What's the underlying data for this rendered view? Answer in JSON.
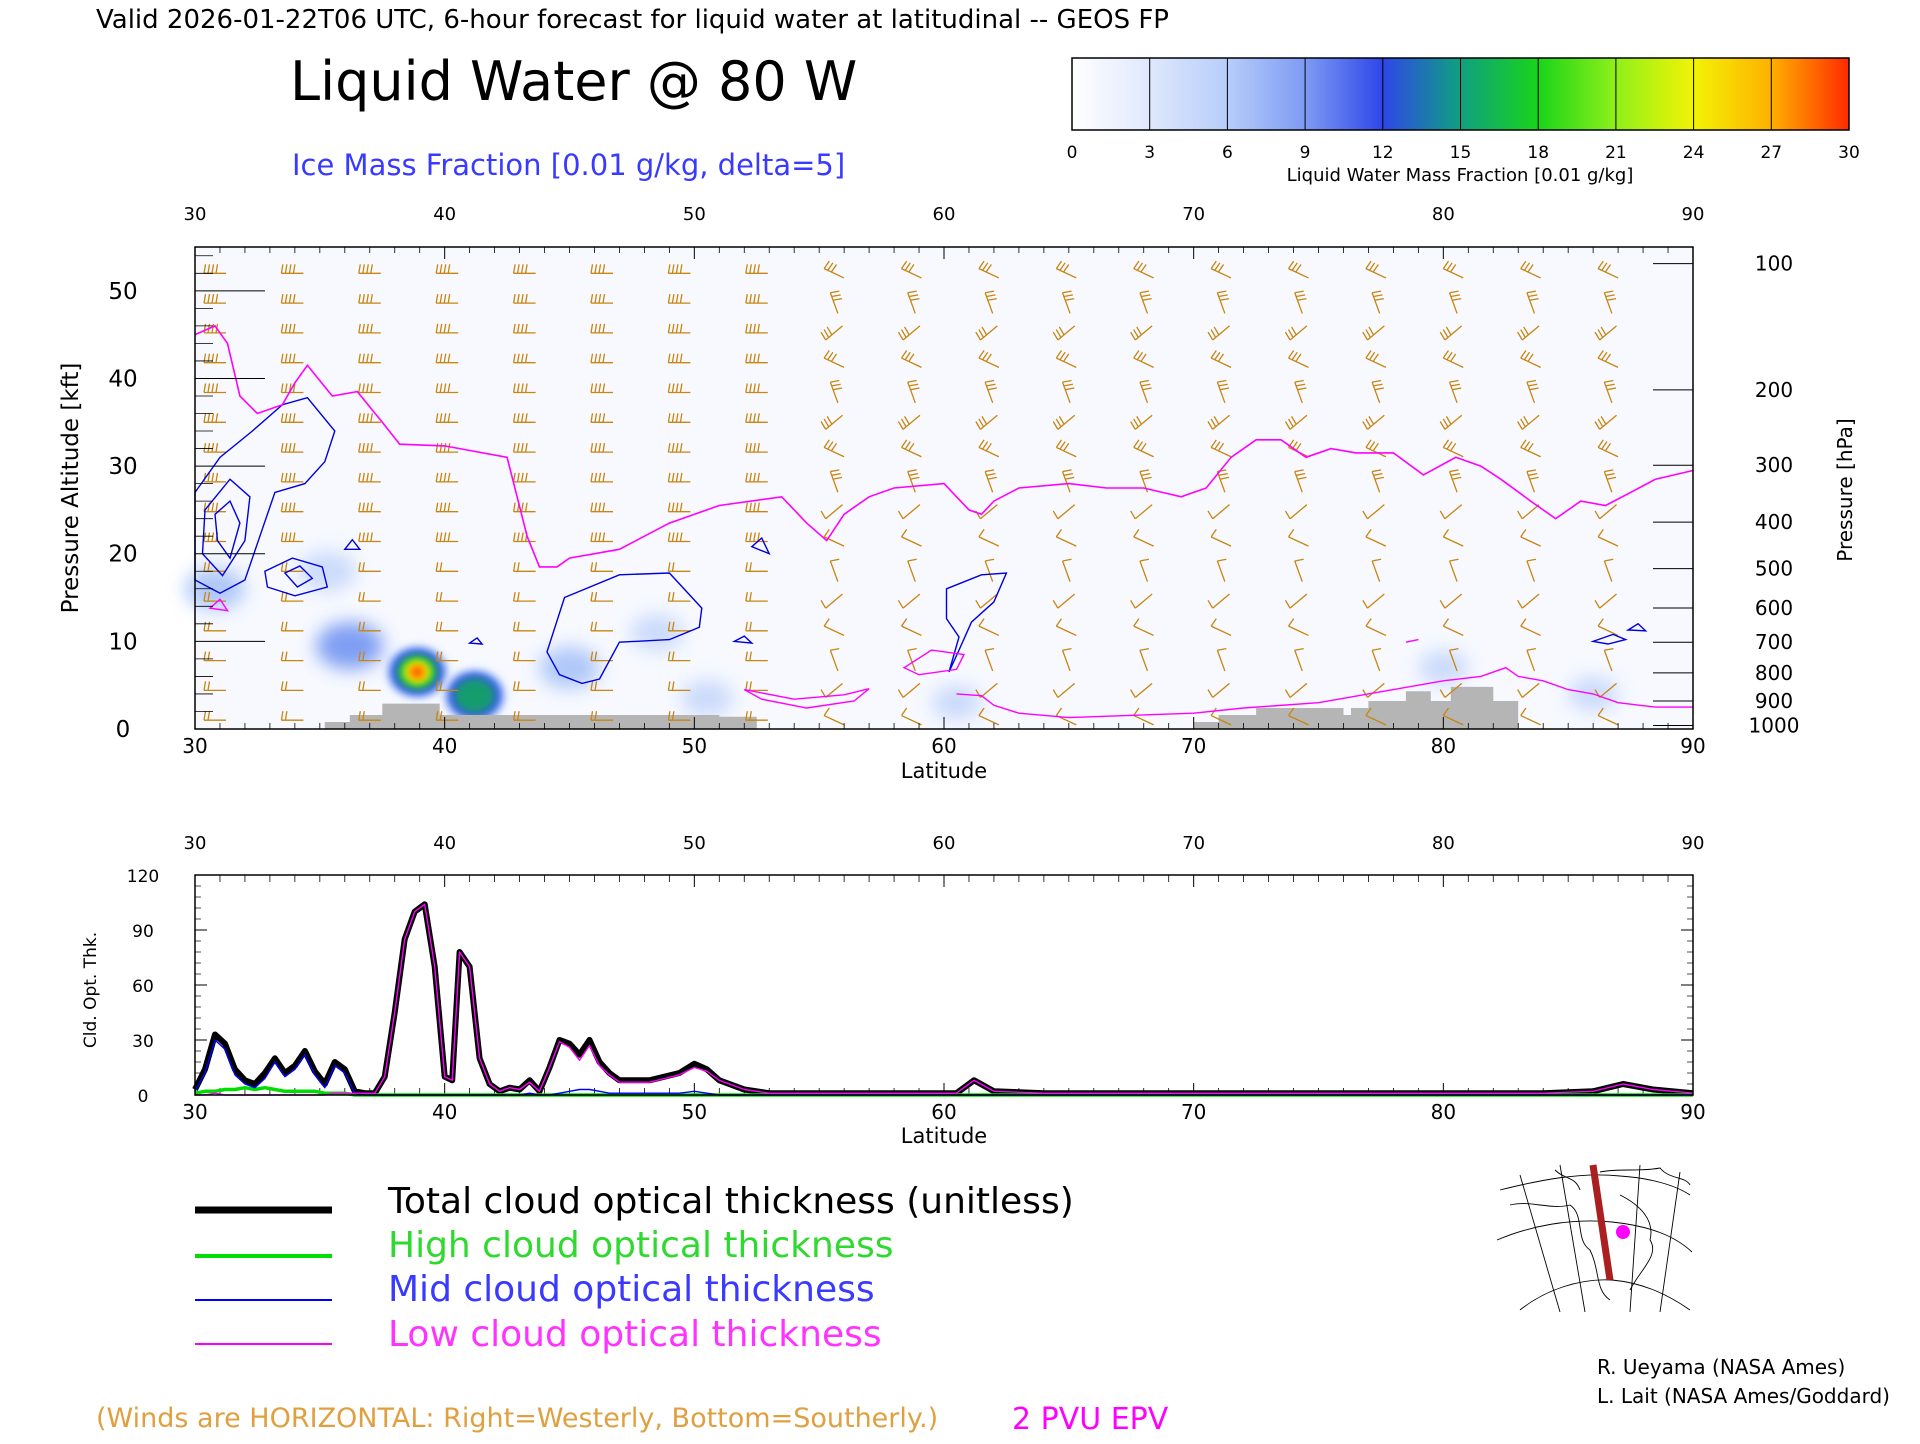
{
  "header": {
    "valid_line": "Valid 2026-01-22T06 UTC, 6-hour forecast for liquid water at latitudinal -- GEOS FP",
    "main_title": "Liquid Water @ 80 W",
    "ice_caption": "Ice Mass Fraction [0.01 g/kg, delta=5]"
  },
  "colorbar": {
    "ticks": [
      "0",
      "3",
      "6",
      "9",
      "12",
      "15",
      "18",
      "21",
      "24",
      "27",
      "30"
    ],
    "label": "Liquid Water Mass Fraction [0.01 g/kg]",
    "colors": [
      "#f4f6ff",
      "#c4d6fb",
      "#a3bff8",
      "#6b8ff1",
      "#2f4ee8",
      "#15a06a",
      "#2bd62b",
      "#9fef1f",
      "#f2f205",
      "#ffb500",
      "#ff3a00"
    ]
  },
  "colors": {
    "wind": "#c8850f",
    "epv": "#ff00ff",
    "ice": "#0000dd",
    "terrain": "#b5b5b5",
    "total_line": "#000000",
    "high_line": "#00dd00",
    "mid_line": "#0000ff",
    "low_line": "#ff00ff"
  },
  "chart_data": [
    {
      "type": "heatmap",
      "xlabel": "Latitude",
      "ylabel": "Pressure Altitude [kft]",
      "y2label": "Pressure [hPa]",
      "xlim": [
        30,
        90
      ],
      "ylim": [
        0,
        55
      ],
      "x_ticks": [
        "30",
        "40",
        "50",
        "60",
        "70",
        "80",
        "90"
      ],
      "y_ticks": [
        "0",
        "10",
        "20",
        "30",
        "40",
        "50"
      ],
      "pressure_ticks": [
        {
          "label": "100",
          "kft": 53.1
        },
        {
          "label": "200",
          "kft": 38.7
        },
        {
          "label": "300",
          "kft": 30.1
        },
        {
          "label": "400",
          "kft": 23.6
        },
        {
          "label": "500",
          "kft": 18.3
        },
        {
          "label": "600",
          "kft": 13.8
        },
        {
          "label": "700",
          "kft": 9.9
        },
        {
          "label": "800",
          "kft": 6.4
        },
        {
          "label": "900",
          "kft": 3.2
        },
        {
          "label": "1000",
          "kft": 0.4
        }
      ],
      "liquid_water_blobs": [
        {
          "lat": 38.9,
          "kft": 6.5,
          "peak": 30
        },
        {
          "lat": 41.2,
          "kft": 3.8,
          "peak": 16
        },
        {
          "lat": 30.8,
          "kft": 16,
          "peak": 5
        },
        {
          "lat": 35.3,
          "kft": 18,
          "peak": 4
        },
        {
          "lat": 36.2,
          "kft": 9.5,
          "peak": 8
        },
        {
          "lat": 45,
          "kft": 7,
          "peak": 5
        },
        {
          "lat": 48.5,
          "kft": 11,
          "peak": 2
        },
        {
          "lat": 50.5,
          "kft": 3.5,
          "peak": 2
        },
        {
          "lat": 60.5,
          "kft": 3,
          "peak": 1
        },
        {
          "lat": 80,
          "kft": 7,
          "peak": 1
        },
        {
          "lat": 86,
          "kft": 4,
          "peak": 1
        }
      ],
      "epv_2pvu_line": [
        [
          30,
          45
        ],
        [
          30.8,
          46
        ],
        [
          31.3,
          44
        ],
        [
          31.8,
          38
        ],
        [
          32.5,
          36
        ],
        [
          33.5,
          37
        ],
        [
          34,
          39.5
        ],
        [
          34.5,
          41.5
        ],
        [
          35.5,
          38
        ],
        [
          36.5,
          38.5
        ],
        [
          37.5,
          35
        ],
        [
          38.2,
          32.5
        ],
        [
          40,
          32.3
        ],
        [
          42.5,
          31
        ],
        [
          43.3,
          22
        ],
        [
          43.8,
          18.5
        ],
        [
          44.5,
          18.5
        ],
        [
          45,
          19.5
        ],
        [
          47,
          20.5
        ],
        [
          49,
          23.5
        ],
        [
          51,
          25.5
        ],
        [
          53.5,
          26.5
        ],
        [
          54.5,
          23.5
        ],
        [
          55.3,
          21.5
        ],
        [
          56,
          24.5
        ],
        [
          57,
          26.5
        ],
        [
          58,
          27.5
        ],
        [
          60,
          28
        ],
        [
          61,
          25
        ],
        [
          61.5,
          24.5
        ],
        [
          62,
          26
        ],
        [
          63,
          27.5
        ],
        [
          65,
          28
        ],
        [
          66.5,
          27.5
        ],
        [
          68,
          27.5
        ],
        [
          69.5,
          26.5
        ],
        [
          70.5,
          27.5
        ],
        [
          71.5,
          31
        ],
        [
          72.5,
          33
        ],
        [
          73.5,
          33
        ],
        [
          74.5,
          31
        ],
        [
          75.5,
          32
        ],
        [
          76.5,
          31.5
        ],
        [
          78,
          31.5
        ],
        [
          79.2,
          29
        ],
        [
          80.5,
          31
        ],
        [
          81.5,
          30
        ],
        [
          82.3,
          28.5
        ],
        [
          83.5,
          26
        ],
        [
          84.5,
          24
        ],
        [
          85.5,
          26
        ],
        [
          86.5,
          25.5
        ],
        [
          87.5,
          27
        ],
        [
          88.5,
          28.5
        ],
        [
          90,
          29.5
        ]
      ],
      "epv_low_line": [
        [
          60.5,
          4
        ],
        [
          61.5,
          3.8
        ],
        [
          62,
          2.7
        ],
        [
          63,
          1.8
        ],
        [
          65,
          1.3
        ],
        [
          70,
          1.8
        ],
        [
          72,
          2.4
        ],
        [
          75,
          3
        ],
        [
          78,
          4.5
        ],
        [
          80,
          5.5
        ],
        [
          81.5,
          6
        ],
        [
          82.5,
          7
        ],
        [
          83,
          6
        ],
        [
          84,
          5.5
        ],
        [
          85,
          4.5
        ],
        [
          86,
          4
        ],
        [
          87,
          3
        ],
        [
          88.5,
          2.5
        ],
        [
          90,
          2.5
        ]
      ],
      "terrain_kft": [
        [
          35.2,
          0
        ],
        [
          35.2,
          0.8
        ],
        [
          36.2,
          0.8
        ],
        [
          36.2,
          1.6
        ],
        [
          37.5,
          1.6
        ],
        [
          37.5,
          2.9
        ],
        [
          39.8,
          2.9
        ],
        [
          39.8,
          1.6
        ],
        [
          51,
          1.6
        ],
        [
          51,
          1.4
        ],
        [
          52.5,
          1.4
        ],
        [
          52.5,
          0
        ],
        [
          70,
          0
        ],
        [
          70,
          0.8
        ],
        [
          71,
          0.8
        ],
        [
          71,
          1.6
        ],
        [
          72.5,
          1.6
        ],
        [
          72.5,
          2.4
        ],
        [
          76,
          2.4
        ],
        [
          76,
          1.6
        ],
        [
          76.3,
          1.6
        ],
        [
          76.3,
          2.4
        ],
        [
          77,
          2.4
        ],
        [
          77,
          3.2
        ],
        [
          78.5,
          3.2
        ],
        [
          78.5,
          4.3
        ],
        [
          79.5,
          4.3
        ],
        [
          79.5,
          3.2
        ],
        [
          80.3,
          3.2
        ],
        [
          80.3,
          4.8
        ],
        [
          82,
          4.8
        ],
        [
          82,
          3.2
        ],
        [
          83,
          3.2
        ],
        [
          83,
          0
        ]
      ]
    },
    {
      "type": "line",
      "xlabel": "Latitude",
      "ylabel": "Cld. Opt. Thk.",
      "xlim": [
        30,
        90
      ],
      "ylim": [
        0,
        120
      ],
      "x_ticks": [
        "30",
        "40",
        "50",
        "60",
        "70",
        "80",
        "90"
      ],
      "y_ticks": [
        "0",
        "30",
        "60",
        "90",
        "120"
      ],
      "x": [
        30,
        30.4,
        30.8,
        31.2,
        31.6,
        32,
        32.4,
        32.8,
        33.2,
        33.6,
        34,
        34.4,
        34.8,
        35.2,
        35.6,
        36,
        36.4,
        36.8,
        37.2,
        37.6,
        38,
        38.4,
        38.8,
        39.2,
        39.6,
        40,
        40.3,
        40.6,
        41,
        41.4,
        41.8,
        42.2,
        42.6,
        43,
        43.4,
        43.8,
        44.2,
        44.6,
        45,
        45.4,
        45.8,
        46.2,
        46.6,
        47,
        47.6,
        48.2,
        48.8,
        49.4,
        50,
        50.5,
        51,
        52,
        53,
        54,
        56,
        58,
        59.5,
        60.5,
        61.2,
        62,
        64,
        66,
        68,
        70,
        72,
        74,
        76,
        78,
        80,
        82,
        84,
        86,
        87.2,
        88.4,
        90
      ],
      "series": [
        {
          "name": "Total cloud optical thickness (unitless)",
          "values": [
            3,
            14,
            33,
            28,
            14,
            8,
            6,
            12,
            20,
            12,
            16,
            24,
            13,
            6,
            18,
            14,
            2,
            1,
            1,
            10,
            45,
            85,
            100,
            104,
            70,
            10,
            8,
            78,
            70,
            20,
            6,
            2,
            4,
            3,
            8,
            2,
            15,
            30,
            28,
            22,
            30,
            18,
            12,
            8,
            8,
            8,
            10,
            12,
            17,
            14,
            8,
            3,
            1,
            1,
            1,
            1,
            1,
            1,
            8,
            2,
            1,
            1,
            1,
            1,
            1,
            1,
            1,
            1,
            1,
            1,
            1,
            2,
            6,
            3,
            1
          ]
        },
        {
          "name": "High cloud optical thickness",
          "values": [
            1,
            2,
            2,
            3,
            3,
            4,
            3,
            4,
            3,
            2,
            2,
            2,
            2,
            1,
            1,
            1,
            0,
            0,
            0,
            0,
            0,
            0,
            0,
            0,
            0,
            0,
            0,
            0,
            0,
            0,
            0,
            0,
            0,
            0,
            0,
            0,
            0,
            0,
            0,
            0,
            0,
            0,
            0,
            0,
            0,
            0,
            0,
            0,
            0,
            0,
            0,
            0,
            0,
            0,
            0,
            0,
            0,
            0,
            0,
            0,
            0,
            0,
            0,
            0,
            0,
            0,
            0,
            0,
            0,
            0,
            0,
            0,
            0,
            0,
            0
          ]
        },
        {
          "name": "Mid cloud optical thickness",
          "values": [
            2,
            12,
            30,
            25,
            11,
            6,
            4,
            9,
            18,
            10,
            14,
            22,
            11,
            4,
            16,
            12,
            1,
            0,
            0,
            0,
            0,
            0,
            0,
            0,
            0,
            0,
            0,
            0,
            0,
            0,
            0,
            0,
            0,
            0,
            1,
            0,
            0,
            1,
            2,
            3,
            3,
            2,
            1,
            1,
            1,
            1,
            1,
            1,
            2,
            1,
            0,
            0,
            0,
            0,
            0,
            0,
            0,
            0,
            0,
            0,
            0,
            0,
            0,
            0,
            0,
            0,
            0,
            0,
            0,
            0,
            0,
            0,
            0,
            0,
            0
          ]
        },
        {
          "name": "Low cloud optical thickness",
          "values": [
            0,
            0,
            1,
            0,
            0,
            0,
            0,
            0,
            0,
            0,
            0,
            0,
            0,
            0,
            1,
            1,
            1,
            1,
            1,
            10,
            45,
            85,
            100,
            104,
            70,
            10,
            8,
            78,
            70,
            20,
            6,
            2,
            4,
            3,
            7,
            2,
            15,
            29,
            26,
            19,
            27,
            16,
            11,
            7,
            7,
            7,
            9,
            11,
            15,
            13,
            8,
            3,
            1,
            1,
            1,
            1,
            1,
            1,
            8,
            2,
            1,
            1,
            1,
            1,
            1,
            1,
            1,
            1,
            1,
            1,
            1,
            2,
            6,
            3,
            1
          ]
        }
      ]
    }
  ],
  "legend": {
    "total": "Total cloud optical thickness (unitless)",
    "high": "High cloud optical thickness",
    "mid": "Mid cloud optical thickness",
    "low": "Low cloud optical thickness"
  },
  "footer": {
    "winds_note": "(Winds are HORIZONTAL: Right=Westerly, Bottom=Southerly.)",
    "epv_label": "2 PVU EPV",
    "credit1": "R. Ueyama (NASA Ames)",
    "credit2": "L. Lait (NASA Ames/Goddard)"
  }
}
